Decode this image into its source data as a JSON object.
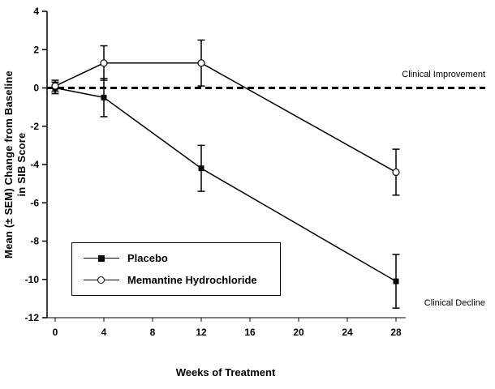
{
  "chart_data": {
    "type": "line",
    "title": "",
    "xlabel": "Weeks of Treatment",
    "ylabel": "Mean (± SEM) Change from Baseline in SIB Score",
    "ylabel_lines": [
      "Mean (± SEM) Change from Baseline",
      "in SIB Score"
    ],
    "xlim": [
      0,
      28
    ],
    "ylim": [
      -12,
      4
    ],
    "x_ticks": [
      0,
      4,
      8,
      12,
      16,
      20,
      24,
      28
    ],
    "y_ticks": [
      -12,
      -10,
      -8,
      -6,
      -4,
      -2,
      0,
      2,
      4
    ],
    "grid": false,
    "legend_position": "lower-left",
    "reference_line": {
      "y": 0,
      "style": "dashed",
      "label_above": "Clinical Improvement",
      "label_below": "Clinical Decline"
    },
    "series": [
      {
        "name": "Placebo",
        "marker": "filled-square",
        "color": "#000000",
        "x": [
          0,
          4,
          12,
          28
        ],
        "y": [
          0,
          -0.5,
          -4.2,
          -10.1
        ],
        "sem": [
          0.3,
          1.0,
          1.2,
          1.4
        ]
      },
      {
        "name": "Memantine Hydrochloride",
        "marker": "open-circle",
        "color": "#000000",
        "x": [
          0,
          4,
          12,
          28
        ],
        "y": [
          0.1,
          1.3,
          1.3,
          -4.4
        ],
        "sem": [
          0.3,
          0.9,
          1.2,
          1.2
        ]
      }
    ]
  }
}
